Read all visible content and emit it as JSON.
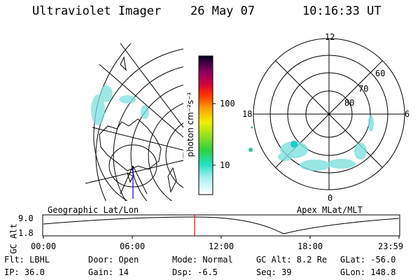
{
  "header": {
    "title": "Ultraviolet Imager",
    "date": "26 May 07",
    "time": "10:16:33 UT"
  },
  "colorbar": {
    "label": "photon cm⁻²s⁻¹",
    "ticks": [
      "100",
      "10"
    ]
  },
  "polar_plot": {
    "mlt_labels": [
      "12",
      "18",
      "6",
      "0"
    ],
    "lat_labels": [
      "60",
      "70",
      "80"
    ]
  },
  "panels": {
    "left_caption": "Geographic Lat/Lon",
    "right_caption": "Apex MLat/MLT"
  },
  "altitude_strip": {
    "ylabel": "GC Alt",
    "yticks": [
      "9.0",
      "1.8"
    ],
    "xticks": [
      "00:00",
      "06:00",
      "12:00",
      "18:00",
      "23:59"
    ]
  },
  "info": {
    "flt": "Flt: LBHL",
    "ip": "IP: 36.0",
    "door": "Door: Open",
    "gain": "Gain: 14",
    "mode": "Mode: Normal",
    "dsp": "Dsp:    -6.5",
    "gcalt": "GC Alt: 8.2 Re",
    "seq": "Seq: 39",
    "glat": "GLat: -56.0",
    "glon": "GLon: 148.8"
  },
  "colors": {
    "aurora": "#7fe0e0",
    "cursor": "#ff0000",
    "track": "#0000cc"
  }
}
